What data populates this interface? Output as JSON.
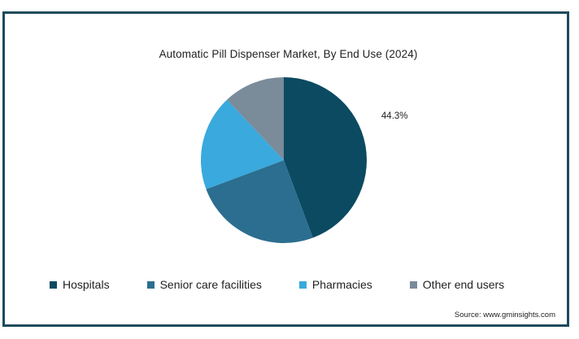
{
  "chart_data": {
    "type": "pie",
    "title": "Automatic Pill Dispenser Market, By End Use (2024)",
    "categories": [
      "Hospitals",
      "Senior care facilities",
      "Pharmacies",
      "Other end users"
    ],
    "values": [
      44.3,
      25.0,
      18.7,
      12.0
    ],
    "colors": [
      "#0b4a61",
      "#2c6e90",
      "#3aa9dd",
      "#7a8b9a"
    ],
    "data_labels": [
      "44.3%",
      "",
      "",
      ""
    ],
    "legend_position": "bottom"
  },
  "source": "Source: www.gminsights.com"
}
